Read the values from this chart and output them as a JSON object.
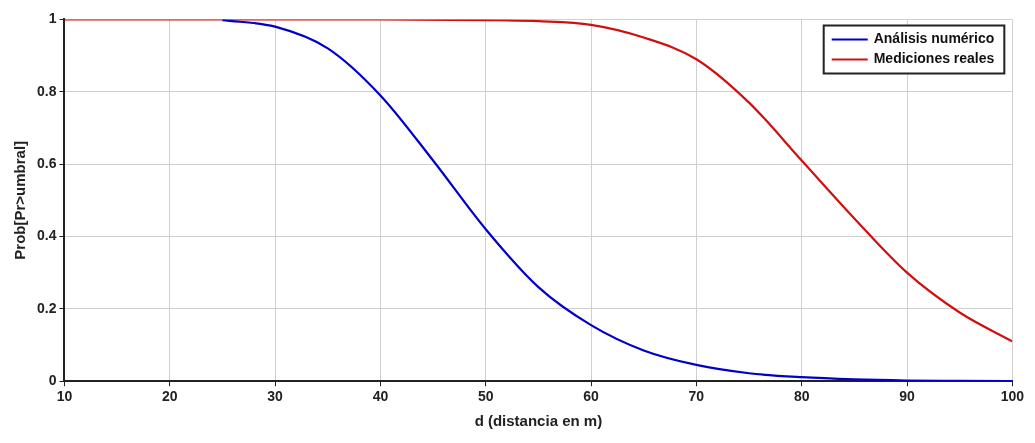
{
  "chart_data": {
    "type": "line",
    "xlabel": "d (distancia en m)",
    "ylabel": "Prob[Pr>umbral]",
    "xlim": [
      10,
      100
    ],
    "xticks": [
      10,
      20,
      30,
      40,
      50,
      60,
      70,
      80,
      90,
      100
    ],
    "ylim": [
      0,
      1
    ],
    "yticks": [
      0,
      0.2,
      0.4,
      0.6,
      0.8,
      {
        "value": 1,
        "label": "1"
      }
    ],
    "grid": true,
    "legend": "top right",
    "marker": "none",
    "line_style": "solid",
    "series": [
      {
        "name": "Análisis numérico",
        "color": "#0000c8",
        "x": [
          25,
          30,
          35,
          40,
          45,
          50,
          55,
          60,
          65,
          70,
          75,
          80,
          85,
          90,
          95,
          100
        ],
        "values": [
          0.998,
          0.98,
          0.92,
          0.79,
          0.61,
          0.42,
          0.26,
          0.155,
          0.085,
          0.045,
          0.022,
          0.011,
          0.005,
          0.002,
          0.001,
          0
        ]
      },
      {
        "name": "Mediciones reales",
        "color": "#d01010",
        "x": [
          10,
          20,
          30,
          40,
          50,
          55,
          60,
          65,
          70,
          75,
          80,
          85,
          90,
          95,
          100
        ],
        "values": [
          1,
          1,
          1,
          1,
          0.998,
          0.995,
          0.985,
          0.95,
          0.89,
          0.77,
          0.61,
          0.45,
          0.3,
          0.19,
          0.11
        ]
      }
    ]
  }
}
